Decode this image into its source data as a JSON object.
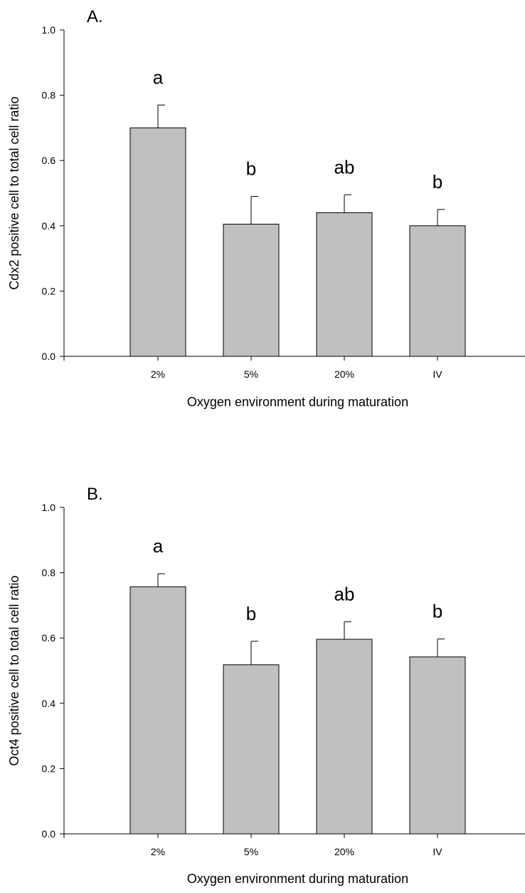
{
  "chart_data": [
    {
      "type": "bar",
      "panel_label": "A.",
      "title": "",
      "xlabel": "Oxygen environment during maturation",
      "ylabel": "Cdx2 positive cell to total cell ratio",
      "categories": [
        "2%",
        "5%",
        "20%",
        "IV"
      ],
      "values": [
        0.7,
        0.405,
        0.44,
        0.4
      ],
      "error": [
        0.07,
        0.085,
        0.055,
        0.05
      ],
      "significance_letters": [
        "a",
        "b",
        "ab",
        "b"
      ],
      "ylim": [
        0.0,
        1.0
      ],
      "yticks": [
        0.0,
        0.2,
        0.4,
        0.6,
        0.8,
        1.0
      ],
      "ytick_labels": [
        "0.0",
        "0.2",
        "0.4",
        "0.6",
        "0.8",
        "1.0"
      ],
      "bar_color": "#c0c0c0",
      "grid": false,
      "legend": "none"
    },
    {
      "type": "bar",
      "panel_label": "B.",
      "title": "",
      "xlabel": "Oxygen environment during maturation",
      "ylabel": "Oct4 positive cell to total cell ratio",
      "categories": [
        "2%",
        "5%",
        "20%",
        "IV"
      ],
      "values": [
        0.757,
        0.518,
        0.596,
        0.542
      ],
      "error": [
        0.04,
        0.072,
        0.054,
        0.055
      ],
      "significance_letters": [
        "a",
        "b",
        "ab",
        "b"
      ],
      "ylim": [
        0.0,
        1.0
      ],
      "yticks": [
        0.0,
        0.2,
        0.4,
        0.6,
        0.8,
        1.0
      ],
      "ytick_labels": [
        "0.0",
        "0.2",
        "0.4",
        "0.6",
        "0.8",
        "1.0"
      ],
      "bar_color": "#c0c0c0",
      "grid": false,
      "legend": "none"
    }
  ]
}
